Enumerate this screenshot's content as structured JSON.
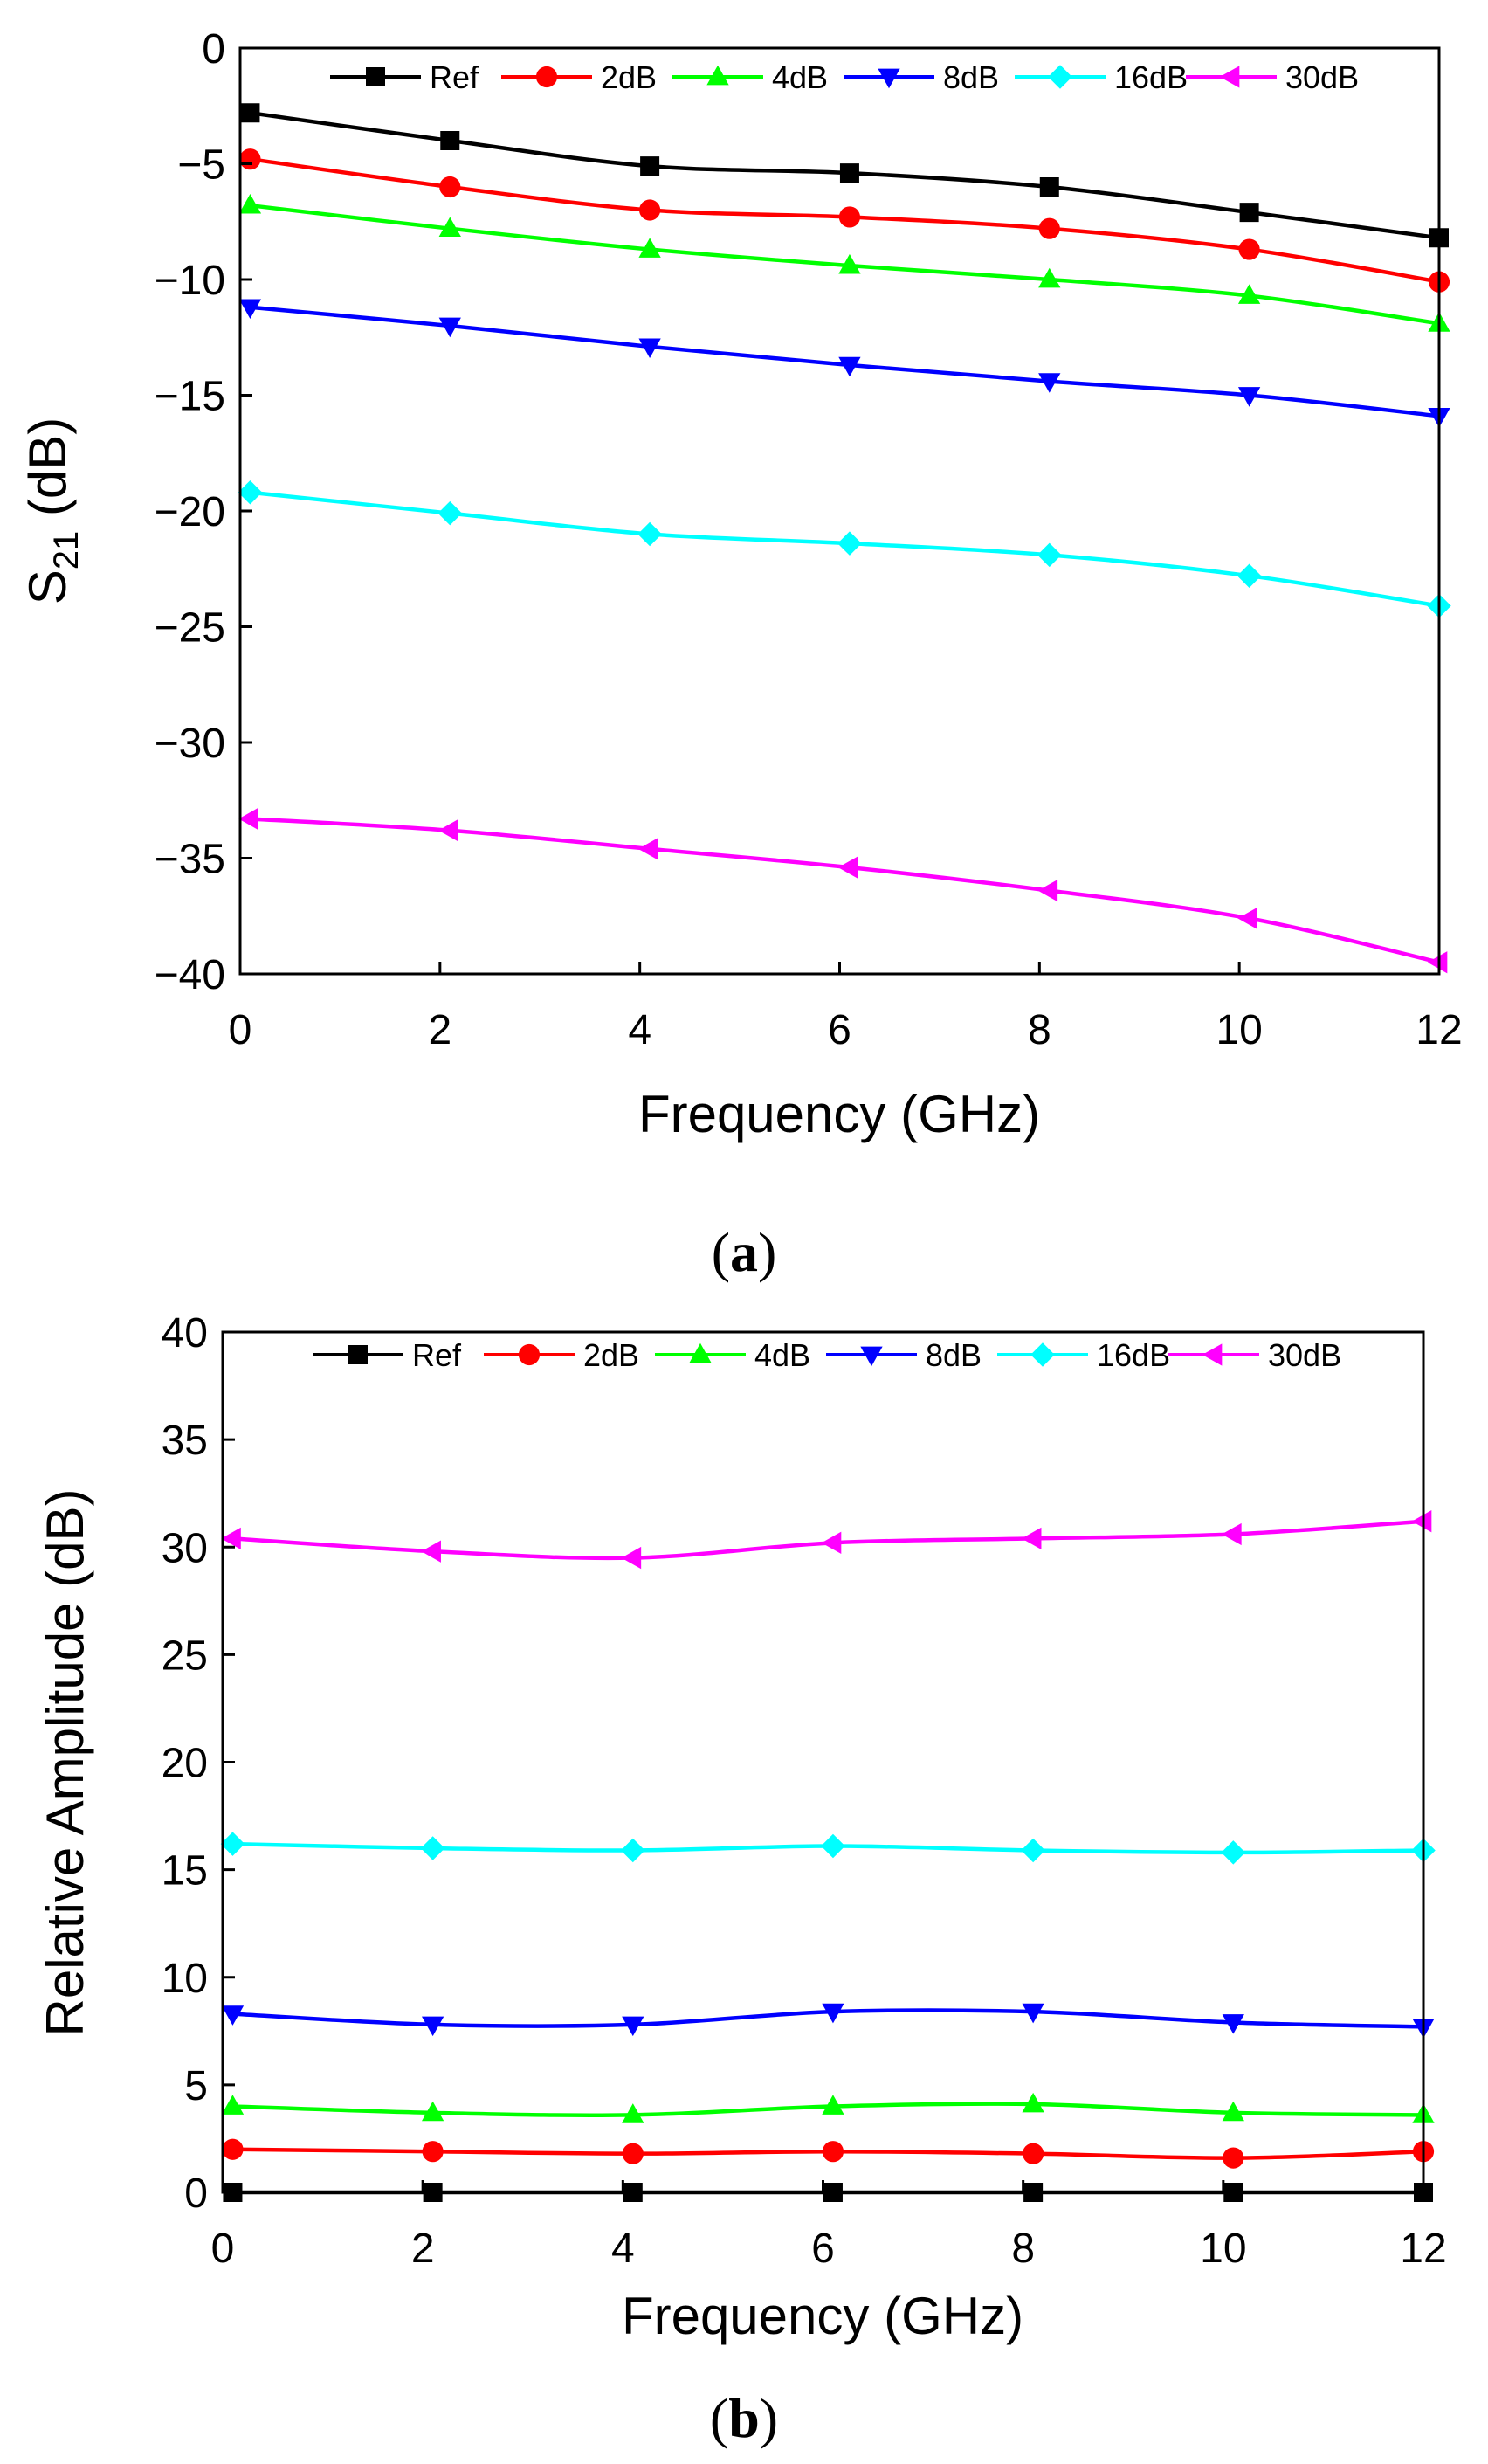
{
  "chart_data": [
    {
      "id": "a",
      "type": "line",
      "caption": "a",
      "xlabel": "Frequency (GHz)",
      "ylabel_main": "S",
      "ylabel_sub": "21",
      "ylabel_unit": "(dB)",
      "xlim": [
        0,
        12
      ],
      "ylim": [
        -40,
        0
      ],
      "xticks": [
        0,
        2,
        4,
        6,
        8,
        10,
        12
      ],
      "yticks": [
        0,
        -5,
        -10,
        -15,
        -20,
        -25,
        -30,
        -35,
        -40
      ],
      "ytick_labels": [
        "0",
        "−5",
        "−10",
        "−15",
        "−20",
        "−25",
        "−30",
        "−35",
        "−40"
      ],
      "grid": false,
      "legend_position": "top",
      "x": [
        0.1,
        2.1,
        4.1,
        6.1,
        8.1,
        10.1,
        12
      ],
      "series": [
        {
          "name": "Ref",
          "color": "#000000",
          "marker": "square",
          "values": [
            -2.8,
            -4.0,
            -5.1,
            -5.4,
            -6.0,
            -7.1,
            -8.2
          ]
        },
        {
          "name": "2dB",
          "color": "#ff0000",
          "marker": "circle",
          "values": [
            -4.8,
            -6.0,
            -7.0,
            -7.3,
            -7.8,
            -8.7,
            -10.1
          ]
        },
        {
          "name": "4dB",
          "color": "#00ff00",
          "marker": "triangle-up",
          "values": [
            -6.8,
            -7.8,
            -8.7,
            -9.4,
            -10.0,
            -10.7,
            -11.9
          ]
        },
        {
          "name": "8dB",
          "color": "#0000ff",
          "marker": "triangle-down",
          "values": [
            -11.2,
            -12.0,
            -12.9,
            -13.7,
            -14.4,
            -15.0,
            -15.9
          ]
        },
        {
          "name": "16dB",
          "color": "#00ffff",
          "marker": "diamond",
          "values": [
            -19.2,
            -20.1,
            -21.0,
            -21.4,
            -21.9,
            -22.8,
            -24.1
          ]
        },
        {
          "name": "30dB",
          "color": "#ff00ff",
          "marker": "triangle-left",
          "values": [
            -33.3,
            -33.8,
            -34.6,
            -35.4,
            -36.4,
            -37.6,
            -39.5
          ]
        }
      ]
    },
    {
      "id": "b",
      "type": "line",
      "caption": "b",
      "xlabel": "Frequency (GHz)",
      "ylabel": "Relative Amplitude (dB)",
      "xlim": [
        0,
        12
      ],
      "ylim": [
        0,
        40
      ],
      "xticks": [
        0,
        2,
        4,
        6,
        8,
        10,
        12
      ],
      "yticks": [
        0,
        5,
        10,
        15,
        20,
        25,
        30,
        35,
        40
      ],
      "ytick_labels": [
        "0",
        "5",
        "10",
        "15",
        "20",
        "25",
        "30",
        "35",
        "40"
      ],
      "grid": false,
      "legend_position": "top",
      "x": [
        0.1,
        2.1,
        4.1,
        6.1,
        8.1,
        10.1,
        12
      ],
      "series": [
        {
          "name": "Ref",
          "color": "#000000",
          "marker": "square",
          "values": [
            0,
            0,
            0,
            0,
            0,
            0,
            0
          ]
        },
        {
          "name": "2dB",
          "color": "#ff0000",
          "marker": "circle",
          "values": [
            2.0,
            1.9,
            1.8,
            1.9,
            1.8,
            1.6,
            1.9
          ]
        },
        {
          "name": "4dB",
          "color": "#00ff00",
          "marker": "triangle-up",
          "values": [
            4.0,
            3.7,
            3.6,
            4.0,
            4.1,
            3.7,
            3.6
          ]
        },
        {
          "name": "8dB",
          "color": "#0000ff",
          "marker": "triangle-down",
          "values": [
            8.3,
            7.8,
            7.8,
            8.4,
            8.4,
            7.9,
            7.7
          ]
        },
        {
          "name": "16dB",
          "color": "#00ffff",
          "marker": "diamond",
          "values": [
            16.2,
            16.0,
            15.9,
            16.1,
            15.9,
            15.8,
            15.9
          ]
        },
        {
          "name": "30dB",
          "color": "#ff00ff",
          "marker": "triangle-left",
          "values": [
            30.4,
            29.8,
            29.5,
            30.2,
            30.4,
            30.6,
            31.2
          ]
        }
      ]
    }
  ]
}
